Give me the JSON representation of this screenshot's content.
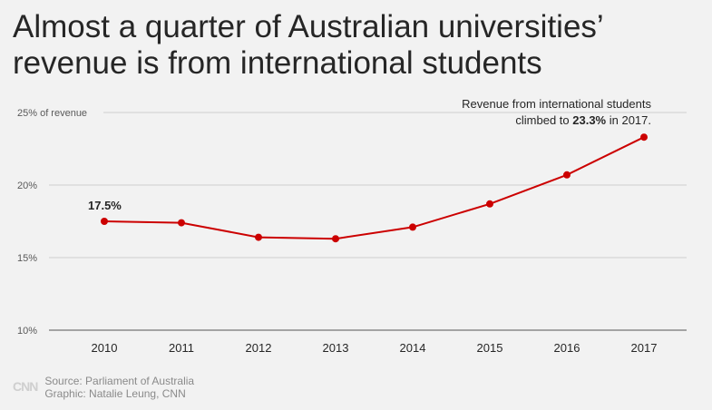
{
  "headline": "Almost a quarter of Australian universities’ revenue is from international students",
  "chart_data": {
    "type": "line",
    "x": [
      "2010",
      "2011",
      "2012",
      "2013",
      "2014",
      "2015",
      "2016",
      "2017"
    ],
    "series": [
      {
        "values": [
          17.5,
          17.4,
          16.4,
          16.3,
          17.1,
          18.7,
          20.7,
          23.3
        ]
      }
    ],
    "ylim": [
      10,
      25
    ],
    "yticks": [
      {
        "value": 10,
        "label": "10%"
      },
      {
        "value": 15,
        "label": "15%"
      },
      {
        "value": 20,
        "label": "20%"
      },
      {
        "value": 25,
        "label": "25% of revenue"
      }
    ],
    "grid": true,
    "line_color": "#cc0000",
    "annotations": {
      "start_label": "17.5%",
      "end_line1": "Revenue from international students",
      "end_line2_pre": "climbed to ",
      "end_line2_bold": "23.3%",
      "end_line2_post": " in 2017."
    }
  },
  "footer": {
    "logo": "CNN",
    "source": "Source: Parliament of Australia",
    "graphic": "Graphic: Natalie Leung, CNN"
  }
}
